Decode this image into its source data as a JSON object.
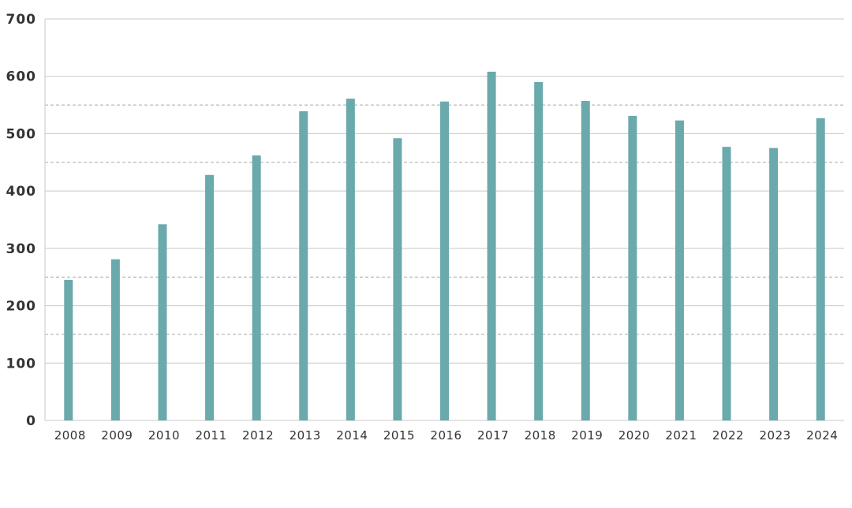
{
  "chart_data": {
    "type": "bar",
    "categories": [
      "2008",
      "2009",
      "2010",
      "2011",
      "2012",
      "2013",
      "2014",
      "2015",
      "2016",
      "2017",
      "2018",
      "2019",
      "2020",
      "2021",
      "2022",
      "2023",
      "2024"
    ],
    "values": [
      245,
      281,
      342,
      428,
      462,
      539,
      561,
      492,
      556,
      608,
      590,
      557,
      531,
      523,
      477,
      475,
      527
    ],
    "ylim": [
      0,
      700
    ],
    "yticks": [
      0,
      100,
      200,
      300,
      400,
      500,
      600,
      700
    ],
    "minor_gridlines": [
      150,
      250,
      450,
      550
    ],
    "grid": true,
    "bar_color": "#6aa9ac",
    "grid_color": "#c8c8c8"
  }
}
